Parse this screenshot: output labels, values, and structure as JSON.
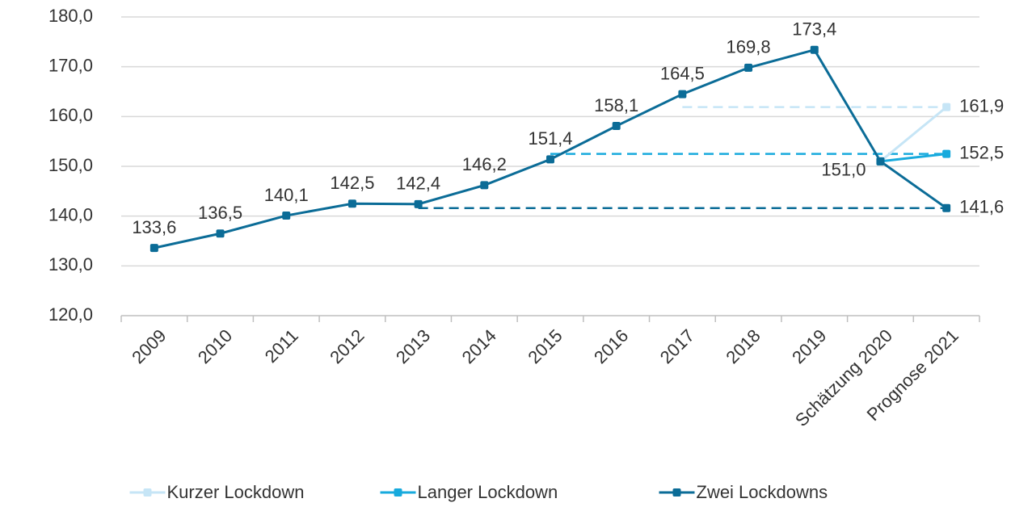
{
  "chart_data": {
    "type": "line",
    "categories": [
      "2009",
      "2010",
      "2011",
      "2012",
      "2013",
      "2014",
      "2015",
      "2016",
      "2017",
      "2018",
      "2019",
      "Schätzung 2020",
      "Prognose 2021"
    ],
    "series": [
      {
        "name": "Kurzer Lockdown",
        "color": "#c6e5f6",
        "dash_from": "2017",
        "values": [
          null,
          null,
          null,
          null,
          null,
          null,
          null,
          null,
          null,
          null,
          null,
          151.0,
          161.9
        ],
        "value_labels": [
          null,
          null,
          null,
          null,
          null,
          null,
          null,
          null,
          null,
          null,
          null,
          null,
          "161,9"
        ]
      },
      {
        "name": "Langer Lockdown",
        "color": "#17aadd",
        "dash_from": "2015",
        "values": [
          null,
          null,
          null,
          null,
          null,
          null,
          null,
          null,
          null,
          null,
          null,
          151.0,
          152.5
        ],
        "value_labels": [
          null,
          null,
          null,
          null,
          null,
          null,
          null,
          null,
          null,
          null,
          null,
          null,
          "152,5"
        ]
      },
      {
        "name": "Zwei Lockdowns",
        "color": "#0b6c97",
        "dash_from": "2013",
        "values": [
          133.6,
          136.5,
          140.1,
          142.5,
          142.4,
          146.2,
          151.4,
          158.1,
          164.5,
          169.8,
          173.4,
          151.0,
          141.6
        ],
        "value_labels": [
          "133,6",
          "136,5",
          "140,1",
          "142,5",
          "142,4",
          "146,2",
          "151,4",
          "158,1",
          "164,5",
          "169,8",
          "173,4",
          "151,0",
          "141,6"
        ]
      }
    ],
    "ylim": [
      120,
      180
    ],
    "yticks": [
      {
        "value": 120,
        "label": "120,0"
      },
      {
        "value": 130,
        "label": "130,0"
      },
      {
        "value": 140,
        "label": "140,0"
      },
      {
        "value": 150,
        "label": "150,0"
      },
      {
        "value": 160,
        "label": "160,0"
      },
      {
        "value": 170,
        "label": "170,0"
      },
      {
        "value": 180,
        "label": "180,0"
      }
    ],
    "grid": true,
    "legend": "bottom"
  }
}
